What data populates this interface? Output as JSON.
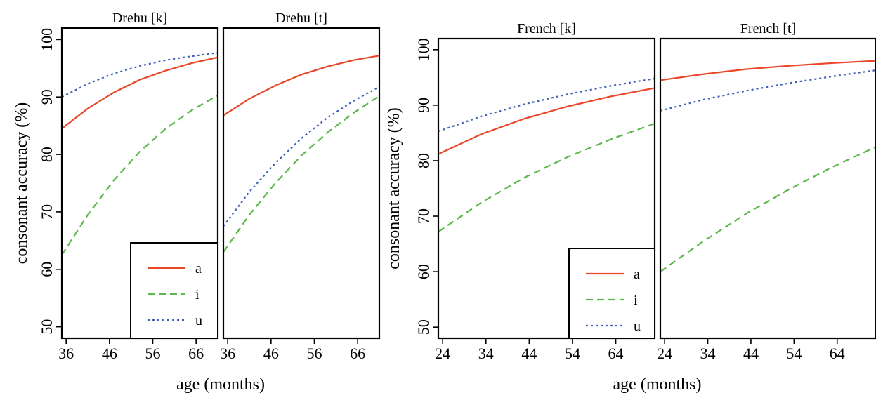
{
  "chart_data": [
    {
      "type": "line",
      "group": "drehu",
      "ylabel": "consonant accuracy (%)",
      "xlabel": "age (months)",
      "ylim": [
        48,
        102
      ],
      "yticks": [
        50,
        60,
        70,
        80,
        90,
        100
      ],
      "legend": {
        "placement": "bottom-right of first panel",
        "entries": [
          "a",
          "i",
          "u"
        ]
      },
      "panels": [
        {
          "title": "Drehu [k]",
          "xlim": [
            35,
            71
          ],
          "xticks": [
            36,
            46,
            56,
            66
          ],
          "series": [
            {
              "name": "a",
              "x": [
                35,
                41,
                47,
                53,
                59,
                65,
                71
              ],
              "y": [
                84.5,
                88.0,
                90.8,
                93.0,
                94.6,
                95.9,
                96.9
              ]
            },
            {
              "name": "i",
              "x": [
                35,
                41,
                47,
                53,
                59,
                65,
                71
              ],
              "y": [
                62.5,
                69.5,
                75.5,
                80.5,
                84.5,
                87.7,
                90.3
              ]
            },
            {
              "name": "u",
              "x": [
                35,
                41,
                47,
                53,
                59,
                65,
                71
              ],
              "y": [
                90.0,
                92.3,
                94.1,
                95.4,
                96.4,
                97.1,
                97.7
              ]
            }
          ]
        },
        {
          "title": "Drehu [t]",
          "xlim": [
            35,
            71
          ],
          "xticks": [
            36,
            46,
            56,
            66
          ],
          "series": [
            {
              "name": "a",
              "x": [
                35,
                41,
                47,
                53,
                59,
                65,
                71
              ],
              "y": [
                86.8,
                89.7,
                92.0,
                93.9,
                95.3,
                96.4,
                97.2
              ]
            },
            {
              "name": "i",
              "x": [
                35,
                41,
                47,
                53,
                59,
                65,
                71
              ],
              "y": [
                63.0,
                69.5,
                75.0,
                79.8,
                83.8,
                87.2,
                90.2
              ]
            },
            {
              "name": "u",
              "x": [
                35,
                41,
                47,
                53,
                59,
                65,
                71
              ],
              "y": [
                67.5,
                73.5,
                78.5,
                82.8,
                86.4,
                89.3,
                91.8
              ]
            }
          ]
        }
      ]
    },
    {
      "type": "line",
      "group": "french",
      "ylabel": "consonant accuracy (%)",
      "xlabel": "age (months)",
      "ylim": [
        48,
        102
      ],
      "yticks": [
        50,
        60,
        70,
        80,
        90,
        100
      ],
      "legend": {
        "placement": "bottom-right of first panel",
        "entries": [
          "a",
          "i",
          "u"
        ]
      },
      "panels": [
        {
          "title": "French [k]",
          "xlim": [
            23,
            73
          ],
          "xticks": [
            24,
            34,
            44,
            54,
            64
          ],
          "series": [
            {
              "name": "a",
              "x": [
                23,
                33,
                43,
                53,
                63,
                73
              ],
              "y": [
                81.2,
                84.8,
                87.6,
                89.8,
                91.6,
                93.1
              ]
            },
            {
              "name": "i",
              "x": [
                23,
                33,
                43,
                53,
                63,
                73
              ],
              "y": [
                67.2,
                72.5,
                77.0,
                80.7,
                83.9,
                86.7
              ]
            },
            {
              "name": "u",
              "x": [
                23,
                33,
                43,
                53,
                63,
                73
              ],
              "y": [
                85.3,
                88.0,
                90.2,
                92.0,
                93.5,
                94.8
              ]
            }
          ]
        },
        {
          "title": "French [t]",
          "xlim": [
            23,
            73
          ],
          "xticks": [
            24,
            34,
            44,
            54,
            64
          ],
          "series": [
            {
              "name": "a",
              "x": [
                23,
                33,
                43,
                53,
                63,
                73
              ],
              "y": [
                94.5,
                95.6,
                96.5,
                97.1,
                97.6,
                98.0
              ]
            },
            {
              "name": "i",
              "x": [
                23,
                33,
                43,
                53,
                63,
                73
              ],
              "y": [
                60.0,
                65.5,
                70.5,
                74.9,
                78.9,
                82.5
              ]
            },
            {
              "name": "u",
              "x": [
                23,
                33,
                43,
                53,
                63,
                73
              ],
              "y": [
                89.0,
                91.0,
                92.6,
                94.0,
                95.2,
                96.3
              ]
            }
          ]
        }
      ]
    }
  ],
  "series_styles": {
    "a": {
      "color": "#e8472a",
      "dash": ""
    },
    "i": {
      "color": "#5cb84a",
      "dash": "10 6"
    },
    "u": {
      "color": "#3f5fb8",
      "dash": "3 4"
    }
  }
}
